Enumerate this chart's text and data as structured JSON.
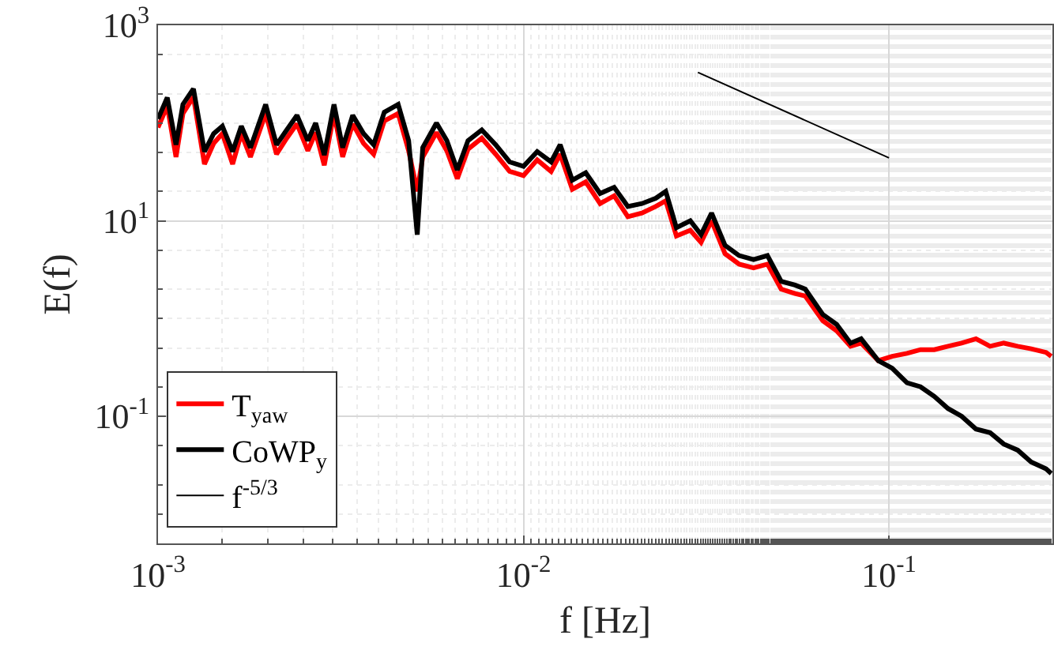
{
  "chart_data": {
    "type": "line",
    "xlabel": "f [Hz]",
    "ylabel": "E(f)",
    "x": [
      0.001,
      0.00106,
      0.00112,
      0.00117,
      0.00125,
      0.00134,
      0.00142,
      0.0015,
      0.0016,
      0.00169,
      0.00179,
      0.00197,
      0.00211,
      0.00225,
      0.0024,
      0.00257,
      0.0027,
      0.00285,
      0.00303,
      0.0032,
      0.00341,
      0.00365,
      0.00389,
      0.00416,
      0.00454,
      0.00485,
      0.00512,
      0.0053,
      0.00578,
      0.00617,
      0.00659,
      0.00705,
      0.00769,
      0.00839,
      0.00916,
      0.01,
      0.0109,
      0.0119,
      0.0126,
      0.0136,
      0.0148,
      0.0162,
      0.0177,
      0.0193,
      0.0211,
      0.023,
      0.0245,
      0.0262,
      0.0286,
      0.0306,
      0.0327,
      0.0356,
      0.0389,
      0.0426,
      0.0465,
      0.0507,
      0.0553,
      0.059,
      0.0659,
      0.0719,
      0.0785,
      0.0839,
      0.0935,
      0.102,
      0.112,
      0.122,
      0.133,
      0.145,
      0.158,
      0.173,
      0.189,
      0.206,
      0.225,
      0.245,
      0.269,
      0.278
    ],
    "series": [
      {
        "name": "T$_{yaw}$",
        "color": "#ff0000",
        "values": [
          90,
          150,
          45,
          125,
          185,
          38,
          62,
          78,
          38,
          78,
          45,
          125,
          48,
          70,
          98,
          52,
          80,
          37,
          125,
          45,
          98,
          62,
          48,
          105,
          125,
          52,
          20,
          45,
          80,
          52,
          27,
          54,
          70,
          48,
          32,
          29,
          42,
          32,
          48,
          21,
          25,
          15,
          18,
          11,
          12,
          14,
          16,
          7,
          8,
          6,
          10,
          4.6,
          3.6,
          3.3,
          3.6,
          2.0,
          1.8,
          1.7,
          0.95,
          0.75,
          0.52,
          0.56,
          0.37,
          0.41,
          0.44,
          0.48,
          0.48,
          0.52,
          0.56,
          0.62,
          0.52,
          0.56,
          0.52,
          0.49,
          0.45,
          0.41
        ]
      },
      {
        "name": "CoWP$_{y}$",
        "color": "#000000",
        "values": [
          110,
          182,
          60,
          155,
          224,
          51,
          78,
          93,
          51,
          93,
          56,
          155,
          60,
          85,
          120,
          66,
          100,
          47,
          155,
          56,
          120,
          78,
          60,
          129,
          155,
          66,
          7.2,
          56,
          100,
          66,
          33,
          66,
          85,
          60,
          40,
          36,
          51,
          40,
          60,
          26,
          31,
          19,
          22,
          14,
          15,
          17,
          20,
          8.5,
          10,
          7.2,
          12,
          5.6,
          4.4,
          4.0,
          4.4,
          2.4,
          2.2,
          2.0,
          1.1,
          0.87,
          0.56,
          0.62,
          0.37,
          0.31,
          0.22,
          0.2,
          0.16,
          0.12,
          0.1,
          0.074,
          0.068,
          0.052,
          0.045,
          0.034,
          0.029,
          0.026
        ]
      },
      {
        "name": "f$^{-5/3}$",
        "color": "#000000",
        "x": [
          0.03,
          0.1
        ],
        "values": [
          330,
          44
        ]
      }
    ],
    "log": "xy",
    "xlim": [
      0.001,
      0.28
    ],
    "ylim": [
      0.005,
      1000
    ],
    "xticks": [
      {
        "value": 0.001,
        "label": "10$^{-3}$"
      },
      {
        "value": 0.01,
        "label": "10$^{-2}$"
      },
      {
        "value": 0.1,
        "label": "10$^{-1}$"
      }
    ],
    "yticks": [
      {
        "value": 0.1,
        "label": "10$^{-1}$"
      },
      {
        "value": 10,
        "label": "10$^{1}$"
      },
      {
        "value": 1000,
        "label": "10$^{3}$"
      }
    ],
    "grid": true,
    "legend": "bottom left",
    "line_style": "solid",
    "marker": "none"
  }
}
